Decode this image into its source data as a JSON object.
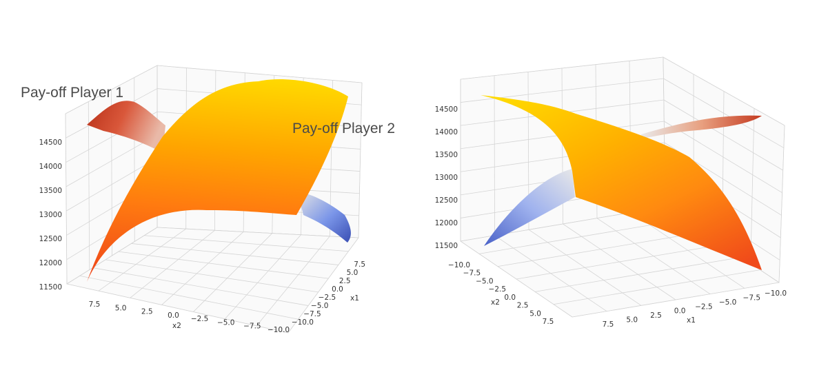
{
  "figure_labels": {
    "player1": "Pay-off Player 1",
    "player2": "Pay-off Player 2"
  },
  "colors": {
    "high": "#ffd700",
    "mid": "#ff9a00",
    "low_warm": "#f04a1a",
    "warm_dark": "#b83018",
    "neutral": "#dcdcdc",
    "cool": "#7a95e8",
    "cool_dark": "#3a4fb4",
    "grid": "#d4d4d4"
  },
  "chart_data": [
    {
      "type": "surface",
      "title": "",
      "xlabel": "x1",
      "ylabel": "x2",
      "zlabel": "",
      "xlim": [
        -10,
        10
      ],
      "ylim": [
        -10,
        10
      ],
      "zlim": [
        11500,
        14700
      ],
      "x_ticks": [
        "7.5",
        "5.0",
        "2.5",
        "0.0",
        "−2.5",
        "−5.0",
        "−7.5",
        "−10.0"
      ],
      "y_ticks": [
        "7.5",
        "5.0",
        "2.5",
        "0.0",
        "−2.5",
        "−5.0",
        "−7.5",
        "−10.0"
      ],
      "z_ticks": [
        "14500",
        "14000",
        "13500",
        "13000",
        "12500",
        "12000",
        "11500"
      ],
      "series": [
        {
          "name": "Pay-off Player 1",
          "colormap": "coolwarm",
          "z_range": [
            11500,
            14700
          ]
        },
        {
          "name": "Pay-off Player 2",
          "colormap": "autumn",
          "z_range": [
            11500,
            14600
          ]
        }
      ],
      "grid": true
    },
    {
      "type": "surface",
      "title": "",
      "xlabel": "x1",
      "ylabel": "x2",
      "zlabel": "",
      "xlim": [
        -10,
        10
      ],
      "ylim": [
        -10,
        10
      ],
      "zlim": [
        11500,
        14700
      ],
      "x_ticks": [
        "7.5",
        "5.0",
        "2.5",
        "0.0",
        "−2.5",
        "−5.0",
        "−7.5",
        "−10.0"
      ],
      "y_ticks": [
        "−10.0",
        "−7.5",
        "−5.0",
        "−2.5",
        "0.0",
        "2.5",
        "5.0",
        "7.5"
      ],
      "z_ticks": [
        "14500",
        "14000",
        "13500",
        "13000",
        "12500",
        "12000",
        "11500"
      ],
      "series": [
        {
          "name": "Pay-off Player 1",
          "colormap": "coolwarm",
          "z_range": [
            11500,
            14700
          ]
        },
        {
          "name": "Pay-off Player 2",
          "colormap": "autumn",
          "z_range": [
            11500,
            14600
          ]
        }
      ],
      "grid": true
    }
  ]
}
